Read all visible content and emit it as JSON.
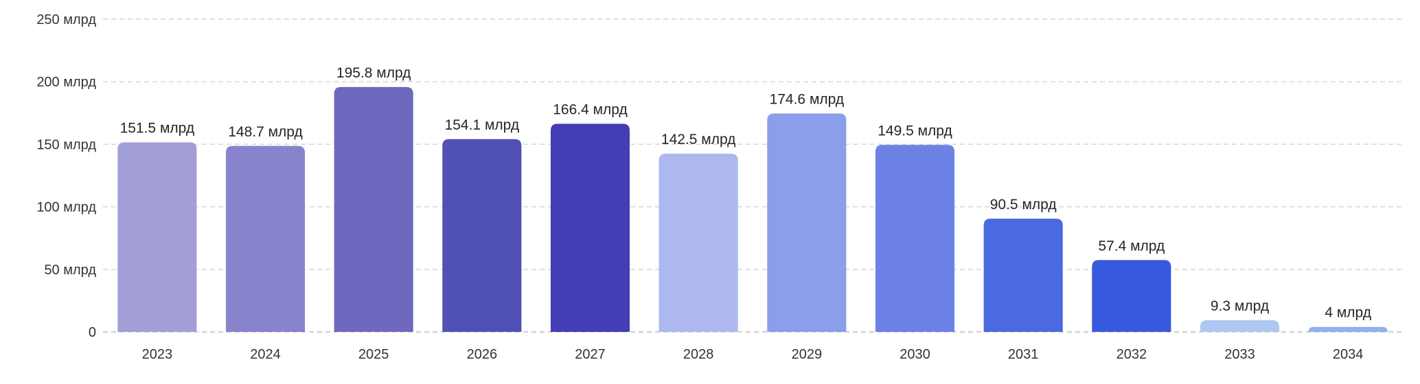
{
  "chart_data": {
    "type": "bar",
    "title": "",
    "xlabel": "",
    "ylabel": "",
    "categories": [
      "2023",
      "2024",
      "2025",
      "2026",
      "2027",
      "2028",
      "2029",
      "2030",
      "2031",
      "2032",
      "2033",
      "2034"
    ],
    "values": [
      151.5,
      148.7,
      195.8,
      154.1,
      166.4,
      142.5,
      174.6,
      149.5,
      90.5,
      57.4,
      9.3,
      4
    ],
    "value_labels": [
      "151.5 млрд",
      "148.7 млрд",
      "195.8 млрд",
      "154.1 млрд",
      "166.4 млрд",
      "142.5 млрд",
      "174.6 млрд",
      "149.5 млрд",
      "90.5 млрд",
      "57.4 млрд",
      "9.3 млрд",
      "4 млрд"
    ],
    "unit": "млрд",
    "ylim": [
      0,
      250
    ],
    "yticks": [
      0,
      50,
      100,
      150,
      200,
      250
    ],
    "ytick_labels": [
      "0",
      "50 млрд",
      "100 млрд",
      "150 млрд",
      "200 млрд",
      "250 млрд"
    ],
    "grid": true,
    "legend": "none",
    "colors": [
      "#a29fd6",
      "#8884cb",
      "#6e69be",
      "#5150b5",
      "#433eb6",
      "#acb8ef",
      "#8b9eea",
      "#6c83e5",
      "#4b6adf",
      "#3759dd",
      "#afc8f1",
      "#8fb0ec"
    ]
  }
}
